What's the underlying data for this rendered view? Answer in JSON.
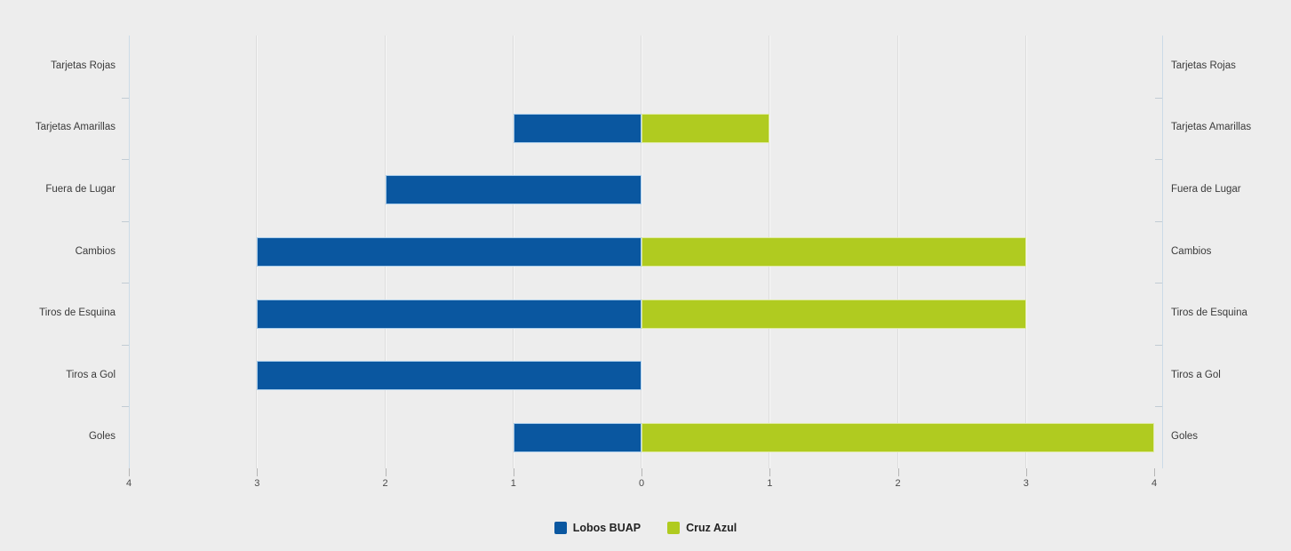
{
  "chart_data": {
    "type": "bar",
    "variant": "diverging-horizontal",
    "title": "",
    "categories": [
      "Tarjetas Rojas",
      "Tarjetas Amarillas",
      "Fuera de Lugar",
      "Cambios",
      "Tiros de Esquina",
      "Tiros a Gol",
      "Goles"
    ],
    "category_labels_sides": "both",
    "series": [
      {
        "name": "Lobos BUAP",
        "side": "left",
        "color": "#0a57a0",
        "values": [
          0,
          1,
          2,
          3,
          3,
          3,
          1
        ]
      },
      {
        "name": "Cruz Azul",
        "side": "right",
        "color": "#b0cb20",
        "values": [
          0,
          1,
          0,
          3,
          3,
          0,
          4
        ]
      }
    ],
    "x_axis": {
      "tick_labels": [
        "4",
        "3",
        "2",
        "1",
        "0",
        "1",
        "2",
        "3",
        "4"
      ],
      "left_range": [
        0,
        4
      ],
      "right_range": [
        0,
        4
      ]
    },
    "grid": true,
    "legend_position": "bottom-center"
  },
  "legend": {
    "items": [
      {
        "label": "Lobos BUAP",
        "color": "#0a57a0"
      },
      {
        "label": "Cruz Azul",
        "color": "#b0cb20"
      }
    ]
  },
  "colors": {
    "background": "#ededed",
    "gridline": "#dcdcdc",
    "axis_line": "#ccdbe7",
    "tick_text": "#4a4a4a",
    "category_text": "#3a3a3a",
    "legend_text": "#222222"
  }
}
